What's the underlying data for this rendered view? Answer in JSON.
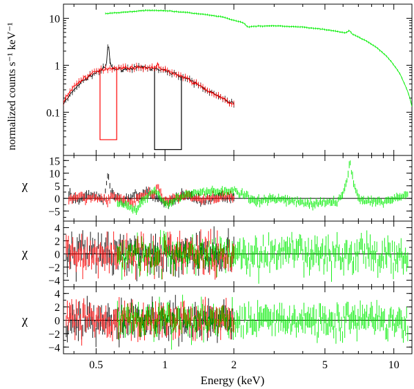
{
  "figure": {
    "xlabel": "Energy (keV)",
    "ylabel_top": "normalized counts s⁻¹ keV⁻¹",
    "ylabel_resid": "χ"
  },
  "colors": {
    "black": "#000000",
    "red": "#ff0000",
    "green": "#00ee00"
  },
  "chart_data": [
    {
      "type": "line",
      "panel": "spectrum",
      "xscale": "log",
      "yscale": "log",
      "xlim": [
        0.36,
        12.0
      ],
      "ylim": [
        0.012,
        20.0
      ],
      "xticks": [
        {
          "v": 0.5,
          "label": "0.5"
        },
        {
          "v": 1,
          "label": "1"
        },
        {
          "v": 2,
          "label": "2"
        },
        {
          "v": 5,
          "label": "5"
        },
        {
          "v": 10,
          "label": "10"
        }
      ],
      "yticks": [
        {
          "v": 0.1,
          "label": "0.1"
        },
        {
          "v": 1,
          "label": "1"
        },
        {
          "v": 10,
          "label": "10"
        }
      ],
      "series": [
        {
          "color": "black",
          "x": [
            0.36,
            0.38,
            0.4,
            0.43,
            0.46,
            0.5,
            0.53,
            0.555,
            0.565,
            0.575,
            0.59,
            0.62,
            0.66,
            0.7,
            0.75,
            0.8,
            0.85,
            0.9,
            0.95,
            1.0,
            1.1,
            1.2,
            1.3,
            1.4,
            1.5,
            1.6,
            1.7,
            1.8,
            1.9,
            2.0
          ],
          "y": [
            0.15,
            0.21,
            0.3,
            0.43,
            0.55,
            0.7,
            0.8,
            0.95,
            3.0,
            1.1,
            0.85,
            0.82,
            0.83,
            0.86,
            0.88,
            0.89,
            0.87,
            0.85,
            0.8,
            0.76,
            0.66,
            0.56,
            0.46,
            0.38,
            0.31,
            0.26,
            0.22,
            0.19,
            0.17,
            0.15
          ],
          "gaps": [
            {
              "x0": 0.9,
              "x1": 1.18,
              "y": 0.016
            }
          ]
        },
        {
          "color": "red",
          "x": [
            0.36,
            0.38,
            0.4,
            0.43,
            0.46,
            0.5,
            0.55,
            0.6,
            0.65,
            0.7,
            0.75,
            0.8,
            0.85,
            0.9,
            0.93,
            0.95,
            1.0,
            1.1,
            1.2,
            1.3,
            1.4,
            1.5,
            1.6,
            1.7,
            1.8,
            1.9,
            2.0
          ],
          "y": [
            0.17,
            0.25,
            0.35,
            0.48,
            0.6,
            0.73,
            0.85,
            0.88,
            0.88,
            0.89,
            0.9,
            0.9,
            0.89,
            0.88,
            1.05,
            0.85,
            0.78,
            0.67,
            0.56,
            0.46,
            0.38,
            0.31,
            0.26,
            0.22,
            0.19,
            0.16,
            0.15
          ],
          "gaps": [
            {
              "x0": 0.52,
              "x1": 0.615,
              "y": 0.026
            }
          ]
        },
        {
          "color": "green",
          "x": [
            0.55,
            0.6,
            0.7,
            0.8,
            0.9,
            1.0,
            1.2,
            1.5,
            1.8,
            2.0,
            2.2,
            2.3,
            2.5,
            3.0,
            4.0,
            5.0,
            5.8,
            6.2,
            6.4,
            6.6,
            7.0,
            8.0,
            9.0,
            10.0,
            11.0,
            11.5,
            12.0
          ],
          "y": [
            12.5,
            13.0,
            13.8,
            14.5,
            14.8,
            14.5,
            13.5,
            12.0,
            10.5,
            9.0,
            8.0,
            6.5,
            6.8,
            6.9,
            6.5,
            5.8,
            5.1,
            4.9,
            5.5,
            4.6,
            4.0,
            2.8,
            1.8,
            1.0,
            0.45,
            0.27,
            0.13
          ]
        }
      ]
    },
    {
      "type": "scatter",
      "panel": "residuals-1",
      "xscale": "log",
      "xlim": [
        0.36,
        12.0
      ],
      "ylim": [
        -9,
        17
      ],
      "yticks": [
        {
          "v": -5,
          "label": "−5"
        },
        {
          "v": 0,
          "label": "0"
        },
        {
          "v": 5,
          "label": "5"
        },
        {
          "v": 10,
          "label": "10"
        },
        {
          "v": 15,
          "label": "15"
        }
      ],
      "series": [
        {
          "color": "black",
          "x": [
            0.38,
            0.42,
            0.46,
            0.5,
            0.54,
            0.565,
            0.58,
            0.65,
            0.75,
            0.85,
            1.0,
            1.2,
            1.5,
            1.8,
            2.0
          ],
          "y": [
            1.5,
            -1.5,
            2.0,
            1.0,
            -1.0,
            10.5,
            3.0,
            -1.5,
            1.0,
            2.5,
            -2.0,
            1.5,
            -1.0,
            1.0,
            0.5
          ],
          "jitter": 1.8
        },
        {
          "color": "red",
          "x": [
            0.38,
            0.42,
            0.46,
            0.5,
            0.55,
            0.6,
            0.7,
            0.8,
            0.9,
            0.93,
            1.0,
            1.2,
            1.5,
            1.8,
            2.0
          ],
          "y": [
            -1.0,
            1.5,
            -0.5,
            1.0,
            -1.5,
            1.0,
            -2.0,
            1.0,
            2.0,
            4.5,
            -1.0,
            1.0,
            -0.5,
            1.0,
            0.0
          ],
          "jitter": 1.8
        },
        {
          "color": "green",
          "x": [
            0.62,
            0.7,
            0.75,
            0.8,
            0.9,
            1.0,
            1.2,
            1.5,
            2.0,
            2.5,
            3.0,
            4.0,
            4.5,
            5.0,
            5.6,
            6.0,
            6.3,
            6.4,
            6.5,
            6.7,
            7.0,
            8.0,
            9.0,
            10.0,
            11.0,
            11.5
          ],
          "y": [
            -1.0,
            -3.5,
            -5.0,
            -1.0,
            3.5,
            -2.0,
            1.0,
            2.5,
            3.0,
            -1.0,
            0.0,
            -1.5,
            -2.5,
            -1.0,
            -1.5,
            2.0,
            8.0,
            15.0,
            12.0,
            5.0,
            0.0,
            -1.0,
            -1.5,
            0.0,
            1.0,
            1.0
          ],
          "jitter": 1.5
        }
      ]
    },
    {
      "type": "scatter",
      "panel": "residuals-2",
      "xscale": "log",
      "xlim": [
        0.36,
        12.0
      ],
      "ylim": [
        -5,
        5
      ],
      "yticks": [
        {
          "v": -4,
          "label": "−4"
        },
        {
          "v": -2,
          "label": "−2"
        },
        {
          "v": 0,
          "label": "0"
        },
        {
          "v": 2,
          "label": "2"
        },
        {
          "v": 4,
          "label": "4"
        }
      ],
      "series": [
        {
          "color": "black",
          "x": [
            0.37,
            0.45,
            0.55,
            0.65,
            0.75,
            0.85,
            1.0,
            1.3,
            1.6,
            2.0
          ],
          "y": [
            0,
            0,
            0,
            0,
            0,
            0,
            0,
            0,
            0,
            0
          ],
          "jitter": 3.2
        },
        {
          "color": "red",
          "x": [
            0.37,
            0.45,
            0.55,
            0.65,
            0.75,
            0.85,
            1.0,
            1.3,
            1.6,
            2.0
          ],
          "y": [
            0,
            0,
            0,
            0,
            0,
            0,
            0,
            0,
            0,
            0
          ],
          "jitter": 3.2
        },
        {
          "color": "green",
          "x": [
            0.62,
            0.8,
            1.0,
            1.5,
            2.0,
            3.0,
            4.0,
            5.0,
            6.0,
            7.0,
            8.0,
            9.0,
            10.0,
            11.5
          ],
          "y": [
            0,
            0,
            0,
            0,
            0,
            0,
            0,
            0,
            0,
            0,
            0,
            0,
            0,
            0
          ],
          "jitter": 3.0
        }
      ]
    },
    {
      "type": "scatter",
      "panel": "residuals-3",
      "xscale": "log",
      "xlim": [
        0.36,
        12.0
      ],
      "ylim": [
        -5,
        5
      ],
      "yticks": [
        {
          "v": -4,
          "label": "−4"
        },
        {
          "v": -2,
          "label": "−2"
        },
        {
          "v": 0,
          "label": "0"
        },
        {
          "v": 2,
          "label": "2"
        },
        {
          "v": 4,
          "label": "4"
        }
      ],
      "series": [
        {
          "color": "black",
          "x": [
            0.37,
            0.45,
            0.55,
            0.65,
            0.75,
            0.85,
            1.0,
            1.3,
            1.6,
            2.0
          ],
          "y": [
            0,
            0,
            0,
            0,
            0,
            0,
            0,
            0,
            0,
            0
          ],
          "jitter": 2.7
        },
        {
          "color": "red",
          "x": [
            0.37,
            0.45,
            0.55,
            0.65,
            0.75,
            0.85,
            1.0,
            1.3,
            1.6,
            2.0
          ],
          "y": [
            0,
            0,
            0,
            0,
            0,
            0,
            0,
            0,
            0,
            0
          ],
          "jitter": 2.7
        },
        {
          "color": "green",
          "x": [
            0.62,
            0.8,
            1.0,
            1.5,
            2.0,
            3.0,
            4.0,
            5.0,
            6.0,
            7.0,
            8.0,
            9.0,
            10.0,
            11.5
          ],
          "y": [
            0,
            0,
            0,
            0,
            0,
            0,
            0,
            0,
            0,
            0,
            0,
            0,
            0,
            0
          ],
          "jitter": 2.7
        }
      ]
    }
  ]
}
